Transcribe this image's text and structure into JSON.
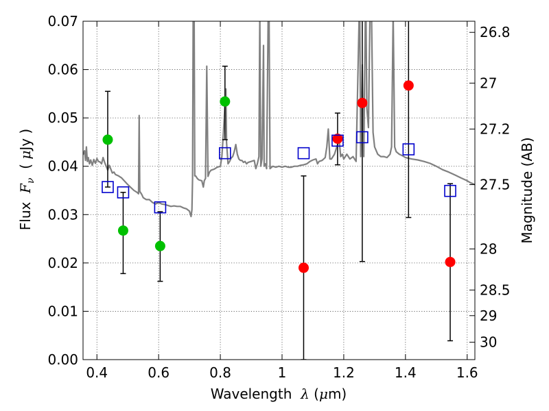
{
  "chart_data": {
    "type": "scatter",
    "xlabel": {
      "prefix": "Wavelength  ",
      "symbol": "λ",
      "units_open": " (",
      "unit_symbol": "μ",
      "units_close": "m)"
    },
    "ylabel": {
      "prefix": "Flux  ",
      "symbol": "F",
      "subscript": "ν",
      "units_open": "  ( ",
      "unit_symbol": "μ",
      "units_close": "Jy )"
    },
    "ylabel_right": "Magnitude (AB)",
    "xlim": [
      0.355,
      1.625
    ],
    "ylim": [
      0.0,
      0.07
    ],
    "x_ticks": [
      {
        "value": 0.4,
        "label": "0.4"
      },
      {
        "value": 0.6,
        "label": "0.6"
      },
      {
        "value": 0.8,
        "label": "0.8"
      },
      {
        "value": 1.0,
        "label": "1"
      },
      {
        "value": 1.2,
        "label": "1.2"
      },
      {
        "value": 1.4,
        "label": "1.4"
      },
      {
        "value": 1.6,
        "label": "1.6"
      }
    ],
    "y_ticks": [
      {
        "value": 0.0,
        "label": "0.00"
      },
      {
        "value": 0.01,
        "label": "0.01"
      },
      {
        "value": 0.02,
        "label": "0.02"
      },
      {
        "value": 0.03,
        "label": "0.03"
      },
      {
        "value": 0.04,
        "label": "0.04"
      },
      {
        "value": 0.05,
        "label": "0.05"
      },
      {
        "value": 0.06,
        "label": "0.06"
      },
      {
        "value": 0.07,
        "label": "0.07"
      }
    ],
    "right_ticks": [
      {
        "flux": 0.0677,
        "label": "26.8"
      },
      {
        "flux": 0.0572,
        "label": "27"
      },
      {
        "flux": 0.0477,
        "label": "27.2"
      },
      {
        "flux": 0.0362,
        "label": "27.5"
      },
      {
        "flux": 0.0229,
        "label": "28"
      },
      {
        "flux": 0.0144,
        "label": "28.5"
      },
      {
        "flux": 0.0091,
        "label": "29"
      },
      {
        "flux": 0.0036,
        "label": "30"
      }
    ],
    "grid": true,
    "series": [
      {
        "name": "model spectrum",
        "kind": "line",
        "color": "#808080",
        "points": [
          [
            0.355,
            0.0424
          ],
          [
            0.36,
            0.0432
          ],
          [
            0.363,
            0.0412
          ],
          [
            0.366,
            0.044
          ],
          [
            0.369,
            0.041
          ],
          [
            0.372,
            0.0418
          ],
          [
            0.376,
            0.0405
          ],
          [
            0.38,
            0.0413
          ],
          [
            0.385,
            0.0402
          ],
          [
            0.39,
            0.0414
          ],
          [
            0.395,
            0.0406
          ],
          [
            0.4,
            0.0416
          ],
          [
            0.405,
            0.041
          ],
          [
            0.41,
            0.0409
          ],
          [
            0.415,
            0.0405
          ],
          [
            0.42,
            0.0418
          ],
          [
            0.425,
            0.0408
          ],
          [
            0.43,
            0.04
          ],
          [
            0.435,
            0.0392
          ],
          [
            0.44,
            0.0402
          ],
          [
            0.445,
            0.0394
          ],
          [
            0.45,
            0.0386
          ],
          [
            0.455,
            0.0388
          ],
          [
            0.46,
            0.0383
          ],
          [
            0.47,
            0.038
          ],
          [
            0.48,
            0.0376
          ],
          [
            0.49,
            0.0369
          ],
          [
            0.5,
            0.0362
          ],
          [
            0.51,
            0.0356
          ],
          [
            0.52,
            0.035
          ],
          [
            0.53,
            0.0346
          ],
          [
            0.535,
            0.0343
          ],
          [
            0.537,
            0.0505
          ],
          [
            0.539,
            0.0348
          ],
          [
            0.545,
            0.0342
          ],
          [
            0.55,
            0.0335
          ],
          [
            0.56,
            0.0331
          ],
          [
            0.57,
            0.0331
          ],
          [
            0.58,
            0.0325
          ],
          [
            0.59,
            0.0322
          ],
          [
            0.6,
            0.0325
          ],
          [
            0.61,
            0.0322
          ],
          [
            0.62,
            0.0321
          ],
          [
            0.63,
            0.0319
          ],
          [
            0.64,
            0.0317
          ],
          [
            0.65,
            0.0318
          ],
          [
            0.66,
            0.0317
          ],
          [
            0.67,
            0.0317
          ],
          [
            0.68,
            0.0314
          ],
          [
            0.69,
            0.0312
          ],
          [
            0.7,
            0.0307
          ],
          [
            0.705,
            0.0296
          ],
          [
            0.708,
            0.031
          ],
          [
            0.71,
            0.0375
          ],
          [
            0.712,
            0.0715
          ],
          [
            0.715,
            0.0715
          ],
          [
            0.717,
            0.038
          ],
          [
            0.72,
            0.038
          ],
          [
            0.725,
            0.0375
          ],
          [
            0.73,
            0.0372
          ],
          [
            0.74,
            0.037
          ],
          [
            0.745,
            0.0357
          ],
          [
            0.748,
            0.037
          ],
          [
            0.752,
            0.0375
          ],
          [
            0.756,
            0.0607
          ],
          [
            0.76,
            0.0379
          ],
          [
            0.765,
            0.0388
          ],
          [
            0.77,
            0.0392
          ],
          [
            0.78,
            0.0394
          ],
          [
            0.79,
            0.0398
          ],
          [
            0.8,
            0.04
          ],
          [
            0.805,
            0.042
          ],
          [
            0.81,
            0.047
          ],
          [
            0.815,
            0.053
          ],
          [
            0.818,
            0.056
          ],
          [
            0.82,
            0.045
          ],
          [
            0.825,
            0.0405
          ],
          [
            0.83,
            0.041
          ],
          [
            0.835,
            0.0417
          ],
          [
            0.84,
            0.042
          ],
          [
            0.845,
            0.043
          ],
          [
            0.85,
            0.0445
          ],
          [
            0.855,
            0.0425
          ],
          [
            0.86,
            0.0415
          ],
          [
            0.865,
            0.0412
          ],
          [
            0.87,
            0.0412
          ],
          [
            0.875,
            0.0408
          ],
          [
            0.88,
            0.041
          ],
          [
            0.885,
            0.0405
          ],
          [
            0.89,
            0.0408
          ],
          [
            0.9,
            0.041
          ],
          [
            0.91,
            0.0412
          ],
          [
            0.915,
            0.0395
          ],
          [
            0.92,
            0.0405
          ],
          [
            0.925,
            0.042
          ],
          [
            0.928,
            0.0715
          ],
          [
            0.931,
            0.04
          ],
          [
            0.935,
            0.0415
          ],
          [
            0.94,
            0.065
          ],
          [
            0.942,
            0.04
          ],
          [
            0.946,
            0.0405
          ],
          [
            0.95,
            0.0395
          ],
          [
            0.955,
            0.0715
          ],
          [
            0.958,
            0.0715
          ],
          [
            0.961,
            0.0395
          ],
          [
            0.97,
            0.04
          ],
          [
            0.98,
            0.0398
          ],
          [
            0.99,
            0.04
          ],
          [
            1.0,
            0.0398
          ],
          [
            1.01,
            0.04
          ],
          [
            1.02,
            0.0398
          ],
          [
            1.03,
            0.0398
          ],
          [
            1.04,
            0.04
          ],
          [
            1.05,
            0.04
          ],
          [
            1.06,
            0.0402
          ],
          [
            1.07,
            0.0403
          ],
          [
            1.08,
            0.0405
          ],
          [
            1.09,
            0.041
          ],
          [
            1.1,
            0.0413
          ],
          [
            1.11,
            0.0415
          ],
          [
            1.115,
            0.0405
          ],
          [
            1.12,
            0.041
          ],
          [
            1.13,
            0.0412
          ],
          [
            1.14,
            0.0418
          ],
          [
            1.145,
            0.044
          ],
          [
            1.15,
            0.0477
          ],
          [
            1.155,
            0.0415
          ],
          [
            1.16,
            0.0415
          ],
          [
            1.17,
            0.0425
          ],
          [
            1.18,
            0.0445
          ],
          [
            1.185,
            0.0455
          ],
          [
            1.19,
            0.042
          ],
          [
            1.195,
            0.0425
          ],
          [
            1.2,
            0.0415
          ],
          [
            1.21,
            0.0425
          ],
          [
            1.22,
            0.0415
          ],
          [
            1.23,
            0.042
          ],
          [
            1.24,
            0.041
          ],
          [
            1.25,
            0.0715
          ],
          [
            1.252,
            0.0715
          ],
          [
            1.255,
            0.042
          ],
          [
            1.26,
            0.061
          ],
          [
            1.265,
            0.042
          ],
          [
            1.27,
            0.0715
          ],
          [
            1.272,
            0.0715
          ],
          [
            1.275,
            0.052
          ],
          [
            1.28,
            0.048
          ],
          [
            1.285,
            0.0715
          ],
          [
            1.29,
            0.0715
          ],
          [
            1.295,
            0.047
          ],
          [
            1.3,
            0.044
          ],
          [
            1.31,
            0.0425
          ],
          [
            1.32,
            0.042
          ],
          [
            1.33,
            0.042
          ],
          [
            1.34,
            0.0418
          ],
          [
            1.35,
            0.0425
          ],
          [
            1.355,
            0.044
          ],
          [
            1.36,
            0.0715
          ],
          [
            1.362,
            0.061
          ],
          [
            1.365,
            0.044
          ],
          [
            1.37,
            0.043
          ],
          [
            1.38,
            0.0425
          ],
          [
            1.39,
            0.0422
          ],
          [
            1.4,
            0.0418
          ],
          [
            1.42,
            0.0415
          ],
          [
            1.44,
            0.0413
          ],
          [
            1.46,
            0.041
          ],
          [
            1.48,
            0.0406
          ],
          [
            1.5,
            0.04
          ],
          [
            1.52,
            0.0393
          ],
          [
            1.54,
            0.0388
          ],
          [
            1.56,
            0.0382
          ],
          [
            1.58,
            0.0376
          ],
          [
            1.6,
            0.037
          ],
          [
            1.61,
            0.0366
          ],
          [
            1.625,
            0.0362
          ]
        ]
      },
      {
        "name": "green points",
        "kind": "circle",
        "color": "#00c000",
        "points": [
          {
            "x": 0.435,
            "y": 0.0455,
            "ylo": null,
            "yhi": null
          },
          {
            "x": 0.485,
            "y": 0.0267,
            "ylo": null,
            "yhi": null
          },
          {
            "x": 0.605,
            "y": 0.0235,
            "ylo": null,
            "yhi": null
          },
          {
            "x": 0.815,
            "y": 0.0534,
            "ylo": null,
            "yhi": null
          }
        ]
      },
      {
        "name": "red points",
        "kind": "circle",
        "color": "#ff0000",
        "points": [
          {
            "x": 1.07,
            "y": 0.019
          },
          {
            "x": 1.18,
            "y": 0.0457
          },
          {
            "x": 1.26,
            "y": 0.0531
          },
          {
            "x": 1.41,
            "y": 0.0567
          },
          {
            "x": 1.545,
            "y": 0.0202
          }
        ]
      },
      {
        "name": "blue squares",
        "kind": "square",
        "color": "#0000cc",
        "points": [
          {
            "x": 0.435,
            "y": 0.0357,
            "ylo": 0.0357,
            "yhi": 0.0555
          },
          {
            "x": 0.485,
            "y": 0.0346,
            "ylo": 0.0178,
            "yhi": 0.0346
          },
          {
            "x": 0.605,
            "y": 0.0315,
            "ylo": 0.0162,
            "yhi": 0.0306
          },
          {
            "x": 0.815,
            "y": 0.0427,
            "ylo": 0.0455,
            "yhi": 0.0607
          },
          {
            "x": 1.07,
            "y": 0.0427,
            "ylo": 0.0,
            "yhi": 0.038
          },
          {
            "x": 1.18,
            "y": 0.0453,
            "ylo": 0.0403,
            "yhi": 0.051
          },
          {
            "x": 1.26,
            "y": 0.046,
            "ylo": 0.0203,
            "yhi": 0.071
          },
          {
            "x": 1.41,
            "y": 0.0435,
            "ylo": 0.0294,
            "yhi": 0.071
          },
          {
            "x": 1.545,
            "y": 0.0349,
            "ylo": 0.0039,
            "yhi": 0.0364
          }
        ]
      }
    ]
  }
}
